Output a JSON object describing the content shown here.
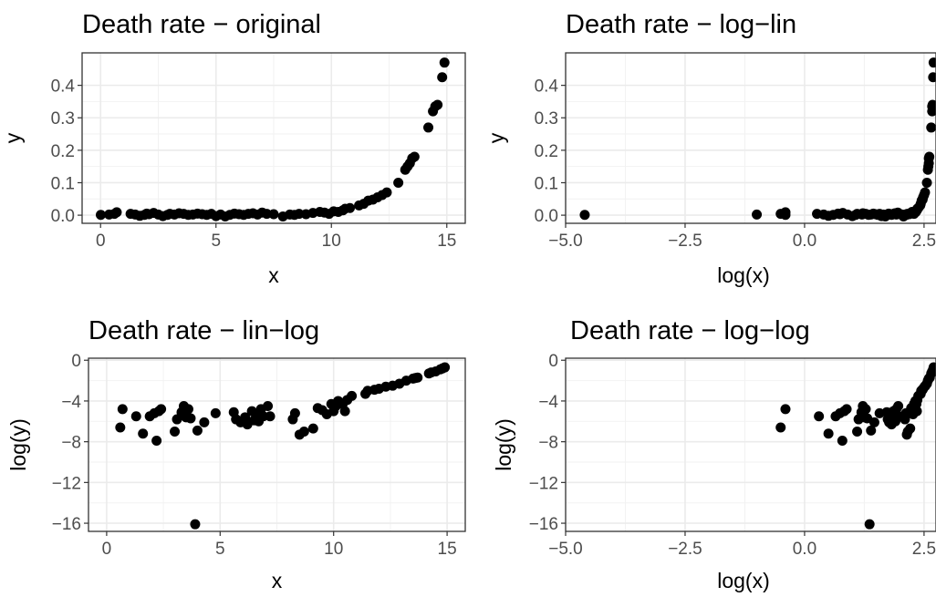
{
  "chart_data": [
    {
      "type": "scatter",
      "title": "Death rate − original",
      "xlabel": "x",
      "ylabel": "y",
      "xlim": [
        -0.8,
        15.8
      ],
      "ylim": [
        -0.025,
        0.5
      ],
      "x_ticks": [
        0,
        5,
        10,
        15
      ],
      "x_tick_labels": [
        "0",
        "5",
        "10",
        "15"
      ],
      "y_ticks": [
        0,
        0.1,
        0.2,
        0.3,
        0.4
      ],
      "y_tick_labels": [
        "0.0",
        "0.1",
        "0.2",
        "0.3",
        "0.4"
      ],
      "grid": true,
      "points": [
        [
          0.01,
          0.001
        ],
        [
          0.37,
          0.002
        ],
        [
          0.6,
          0.004
        ],
        [
          0.7,
          0.009
        ],
        [
          1.3,
          0.004
        ],
        [
          1.5,
          0.002
        ],
        [
          1.7,
          -0.002
        ],
        [
          1.9,
          0.001
        ],
        [
          2.0,
          0.005
        ],
        [
          2.1,
          0.003
        ],
        [
          2.3,
          0.007
        ],
        [
          2.5,
          0.002
        ],
        [
          2.7,
          -0.003
        ],
        [
          2.9,
          0.001
        ],
        [
          3.0,
          0.004
        ],
        [
          3.2,
          0.002
        ],
        [
          3.4,
          0.006
        ],
        [
          3.6,
          0.004
        ],
        [
          3.8,
          0.001
        ],
        [
          4.0,
          0.002
        ],
        [
          4.2,
          0.005
        ],
        [
          4.4,
          0.003
        ],
        [
          4.6,
          0.001
        ],
        [
          4.8,
          0.004
        ],
        [
          5.0,
          -0.003
        ],
        [
          5.2,
          0.002
        ],
        [
          5.4,
          -0.004
        ],
        [
          5.6,
          0.001
        ],
        [
          5.8,
          0.005
        ],
        [
          6.0,
          0.003
        ],
        [
          6.2,
          0.001
        ],
        [
          6.4,
          0.004
        ],
        [
          6.6,
          0.006
        ],
        [
          6.8,
          0.002
        ],
        [
          7.0,
          0.008
        ],
        [
          7.2,
          0.004
        ],
        [
          7.5,
          0.003
        ],
        [
          7.9,
          -0.004
        ],
        [
          8.2,
          0.002
        ],
        [
          8.4,
          0.001
        ],
        [
          8.6,
          0.004
        ],
        [
          8.9,
          0.003
        ],
        [
          9.2,
          0.007
        ],
        [
          9.5,
          0.01
        ],
        [
          9.7,
          0.008
        ],
        [
          9.9,
          0.004
        ],
        [
          10.1,
          0.012
        ],
        [
          10.3,
          0.01
        ],
        [
          10.5,
          0.015
        ],
        [
          10.6,
          0.02
        ],
        [
          10.8,
          0.022
        ],
        [
          11.2,
          0.03
        ],
        [
          11.4,
          0.035
        ],
        [
          11.6,
          0.045
        ],
        [
          11.8,
          0.048
        ],
        [
          12.0,
          0.055
        ],
        [
          12.2,
          0.062
        ],
        [
          12.4,
          0.07
        ],
        [
          12.9,
          0.1
        ],
        [
          13.2,
          0.14
        ],
        [
          13.3,
          0.15
        ],
        [
          13.4,
          0.16
        ],
        [
          13.5,
          0.175
        ],
        [
          13.6,
          0.18
        ],
        [
          14.2,
          0.27
        ],
        [
          14.4,
          0.32
        ],
        [
          14.5,
          0.335
        ],
        [
          14.6,
          0.34
        ],
        [
          14.8,
          0.425
        ],
        [
          14.9,
          0.47
        ]
      ]
    },
    {
      "type": "scatter",
      "title": "Death rate − log−lin",
      "xlabel": "log(x)",
      "ylabel": "y",
      "xlim": [
        -5.0,
        2.75
      ],
      "ylim": [
        -0.025,
        0.5
      ],
      "x_ticks": [
        -5,
        -2.5,
        0,
        2.5
      ],
      "x_tick_labels": [
        "−5.0",
        "−2.5",
        "0.0",
        "2.5"
      ],
      "y_ticks": [
        0,
        0.1,
        0.2,
        0.3,
        0.4
      ],
      "y_tick_labels": [
        "0.0",
        "0.1",
        "0.2",
        "0.3",
        "0.4"
      ],
      "grid": true,
      "points": [
        [
          -4.6,
          0.001
        ],
        [
          -1.0,
          0.002
        ],
        [
          -0.5,
          0.004
        ],
        [
          -0.4,
          0.009
        ],
        [
          -0.4,
          0.001
        ],
        [
          0.26,
          0.004
        ],
        [
          0.4,
          0.002
        ],
        [
          0.5,
          -0.002
        ],
        [
          0.6,
          0.001
        ],
        [
          0.7,
          0.005
        ],
        [
          0.74,
          0.003
        ],
        [
          0.8,
          0.007
        ],
        [
          0.9,
          0.002
        ],
        [
          1.0,
          -0.003
        ],
        [
          1.07,
          0.001
        ],
        [
          1.1,
          0.004
        ],
        [
          1.2,
          0.002
        ],
        [
          1.22,
          0.006
        ],
        [
          1.28,
          0.004
        ],
        [
          1.34,
          0.001
        ],
        [
          1.39,
          0.002
        ],
        [
          1.44,
          0.005
        ],
        [
          1.48,
          0.003
        ],
        [
          1.53,
          0.001
        ],
        [
          1.57,
          0.004
        ],
        [
          1.61,
          -0.003
        ],
        [
          1.65,
          0.002
        ],
        [
          1.69,
          -0.004
        ],
        [
          1.72,
          0.001
        ],
        [
          1.76,
          0.005
        ],
        [
          1.79,
          0.003
        ],
        [
          1.82,
          0.001
        ],
        [
          1.86,
          0.004
        ],
        [
          1.89,
          0.006
        ],
        [
          1.92,
          0.002
        ],
        [
          1.95,
          0.008
        ],
        [
          1.97,
          0.004
        ],
        [
          2.01,
          0.003
        ],
        [
          2.07,
          -0.004
        ],
        [
          2.1,
          0.002
        ],
        [
          2.13,
          0.001
        ],
        [
          2.15,
          0.004
        ],
        [
          2.19,
          0.003
        ],
        [
          2.22,
          0.007
        ],
        [
          2.25,
          0.01
        ],
        [
          2.27,
          0.008
        ],
        [
          2.29,
          0.004
        ],
        [
          2.31,
          0.012
        ],
        [
          2.33,
          0.01
        ],
        [
          2.35,
          0.015
        ],
        [
          2.36,
          0.02
        ],
        [
          2.38,
          0.022
        ],
        [
          2.42,
          0.03
        ],
        [
          2.43,
          0.035
        ],
        [
          2.45,
          0.045
        ],
        [
          2.47,
          0.048
        ],
        [
          2.48,
          0.055
        ],
        [
          2.5,
          0.062
        ],
        [
          2.52,
          0.07
        ],
        [
          2.56,
          0.1
        ],
        [
          2.58,
          0.14
        ],
        [
          2.59,
          0.15
        ],
        [
          2.6,
          0.16
        ],
        [
          2.6,
          0.175
        ],
        [
          2.61,
          0.18
        ],
        [
          2.65,
          0.27
        ],
        [
          2.67,
          0.32
        ],
        [
          2.67,
          0.335
        ],
        [
          2.68,
          0.34
        ],
        [
          2.69,
          0.425
        ],
        [
          2.7,
          0.47
        ]
      ]
    },
    {
      "type": "scatter",
      "title": "Death rate − lin−log",
      "xlabel": "x",
      "ylabel": "log(y)",
      "xlim": [
        -0.8,
        15.8
      ],
      "ylim": [
        -16.8,
        0.2
      ],
      "x_ticks": [
        0,
        5,
        10,
        15
      ],
      "x_tick_labels": [
        "0",
        "5",
        "10",
        "15"
      ],
      "y_ticks": [
        0,
        -4,
        -8,
        -12,
        -16
      ],
      "y_tick_labels": [
        "0",
        "−4",
        "−8",
        "−12",
        "−16"
      ],
      "grid": true,
      "points": [
        [
          0.6,
          -6.6
        ],
        [
          0.7,
          -4.8
        ],
        [
          1.3,
          -5.5
        ],
        [
          1.6,
          -7.2
        ],
        [
          1.9,
          -5.5
        ],
        [
          2.1,
          -5.2
        ],
        [
          2.2,
          -7.9
        ],
        [
          2.3,
          -5.0
        ],
        [
          2.4,
          -4.8
        ],
        [
          3.0,
          -7.0
        ],
        [
          3.1,
          -5.8
        ],
        [
          3.3,
          -5.1
        ],
        [
          3.4,
          -4.5
        ],
        [
          3.5,
          -5.6
        ],
        [
          3.6,
          -4.8
        ],
        [
          3.7,
          -5.7
        ],
        [
          3.9,
          -16.1
        ],
        [
          4.0,
          -6.9
        ],
        [
          4.3,
          -6.1
        ],
        [
          4.8,
          -5.2
        ],
        [
          5.6,
          -5.1
        ],
        [
          5.7,
          -5.8
        ],
        [
          5.9,
          -6.1
        ],
        [
          6.1,
          -5.6
        ],
        [
          6.2,
          -6.3
        ],
        [
          6.4,
          -5.0
        ],
        [
          6.5,
          -5.9
        ],
        [
          6.6,
          -5.4
        ],
        [
          6.7,
          -6.0
        ],
        [
          6.8,
          -4.8
        ],
        [
          6.9,
          -5.5
        ],
        [
          7.1,
          -4.5
        ],
        [
          7.2,
          -5.5
        ],
        [
          8.2,
          -5.8
        ],
        [
          8.3,
          -5.2
        ],
        [
          8.5,
          -7.3
        ],
        [
          8.7,
          -7.0
        ],
        [
          9.1,
          -6.7
        ],
        [
          9.3,
          -4.7
        ],
        [
          9.5,
          -4.9
        ],
        [
          9.7,
          -5.3
        ],
        [
          9.9,
          -4.3
        ],
        [
          10.0,
          -5.0
        ],
        [
          10.1,
          -4.5
        ],
        [
          10.2,
          -4.0
        ],
        [
          10.4,
          -4.3
        ],
        [
          10.5,
          -5.0
        ],
        [
          10.6,
          -3.9
        ],
        [
          10.8,
          -3.5
        ],
        [
          11.4,
          -3.3
        ],
        [
          11.5,
          -3.0
        ],
        [
          11.8,
          -2.9
        ],
        [
          12.0,
          -2.8
        ],
        [
          12.3,
          -2.6
        ],
        [
          12.6,
          -2.5
        ],
        [
          12.9,
          -2.3
        ],
        [
          13.2,
          -2.0
        ],
        [
          13.5,
          -1.8
        ],
        [
          13.6,
          -1.75
        ],
        [
          13.7,
          -1.7
        ],
        [
          14.2,
          -1.3
        ],
        [
          14.3,
          -1.2
        ],
        [
          14.5,
          -1.1
        ],
        [
          14.7,
          -0.9
        ],
        [
          14.8,
          -0.8
        ],
        [
          14.9,
          -0.7
        ]
      ]
    },
    {
      "type": "scatter",
      "title": "Death rate − log−log",
      "xlabel": "log(x)",
      "ylabel": "log(y)",
      "xlim": [
        -5.0,
        2.75
      ],
      "ylim": [
        -16.8,
        0.2
      ],
      "x_ticks": [
        -5,
        -2.5,
        0,
        2.5
      ],
      "x_tick_labels": [
        "−5.0",
        "−2.5",
        "0.0",
        "2.5"
      ],
      "y_ticks": [
        0,
        -4,
        -8,
        -12,
        -16
      ],
      "y_tick_labels": [
        "0",
        "−4",
        "−8",
        "−12",
        "−16"
      ],
      "grid": true,
      "points": [
        [
          -0.5,
          -6.6
        ],
        [
          -0.4,
          -4.8
        ],
        [
          0.3,
          -5.5
        ],
        [
          0.5,
          -7.2
        ],
        [
          0.65,
          -5.5
        ],
        [
          0.74,
          -5.2
        ],
        [
          0.79,
          -7.9
        ],
        [
          0.83,
          -5.0
        ],
        [
          0.88,
          -4.8
        ],
        [
          1.1,
          -7.0
        ],
        [
          1.13,
          -5.8
        ],
        [
          1.19,
          -5.1
        ],
        [
          1.22,
          -4.5
        ],
        [
          1.25,
          -5.6
        ],
        [
          1.28,
          -4.8
        ],
        [
          1.31,
          -5.7
        ],
        [
          1.36,
          -16.1
        ],
        [
          1.39,
          -6.9
        ],
        [
          1.46,
          -6.1
        ],
        [
          1.57,
          -5.2
        ],
        [
          1.72,
          -5.1
        ],
        [
          1.74,
          -5.8
        ],
        [
          1.77,
          -6.1
        ],
        [
          1.81,
          -5.6
        ],
        [
          1.82,
          -6.3
        ],
        [
          1.86,
          -5.0
        ],
        [
          1.87,
          -5.9
        ],
        [
          1.89,
          -5.4
        ],
        [
          1.9,
          -6.0
        ],
        [
          1.92,
          -4.8
        ],
        [
          1.93,
          -5.5
        ],
        [
          1.96,
          -4.5
        ],
        [
          1.97,
          -5.5
        ],
        [
          2.1,
          -5.8
        ],
        [
          2.12,
          -5.2
        ],
        [
          2.14,
          -7.3
        ],
        [
          2.16,
          -7.0
        ],
        [
          2.21,
          -6.7
        ],
        [
          2.23,
          -4.7
        ],
        [
          2.25,
          -4.9
        ],
        [
          2.27,
          -5.3
        ],
        [
          2.29,
          -4.3
        ],
        [
          2.3,
          -5.0
        ],
        [
          2.31,
          -4.5
        ],
        [
          2.32,
          -4.0
        ],
        [
          2.34,
          -4.3
        ],
        [
          2.35,
          -5.0
        ],
        [
          2.36,
          -3.9
        ],
        [
          2.38,
          -3.5
        ],
        [
          2.43,
          -3.3
        ],
        [
          2.44,
          -3.0
        ],
        [
          2.47,
          -2.9
        ],
        [
          2.48,
          -2.8
        ],
        [
          2.51,
          -2.6
        ],
        [
          2.53,
          -2.5
        ],
        [
          2.56,
          -2.3
        ],
        [
          2.58,
          -2.0
        ],
        [
          2.6,
          -1.8
        ],
        [
          2.61,
          -1.75
        ],
        [
          2.62,
          -1.7
        ],
        [
          2.65,
          -1.3
        ],
        [
          2.66,
          -1.2
        ],
        [
          2.67,
          -1.1
        ],
        [
          2.69,
          -0.9
        ],
        [
          2.7,
          -0.8
        ],
        [
          2.7,
          -0.7
        ]
      ]
    }
  ]
}
